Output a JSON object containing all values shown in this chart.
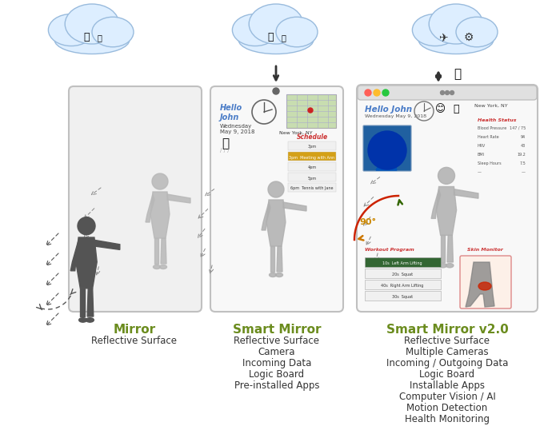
{
  "bg_color": "#ffffff",
  "green_title": "#6b8c1e",
  "mirror_title": "Mirror",
  "mirror_sub": [
    "Reflective Surface"
  ],
  "smart_mirror_title": "Smart Mirror",
  "smart_mirror_sub": [
    "Reflective Surface",
    "Camera",
    "Incoming Data",
    "Logic Board",
    "Pre-installed Apps"
  ],
  "smart_mirror_v2_title": "Smart Mirror v2.0",
  "smart_mirror_v2_sub": [
    "Reflective Surface",
    "Multiple Cameras",
    "Incoming / Outgoing Data",
    "Logic Board",
    "Installable Apps",
    "Computer Vision / AI",
    "Motion Detection",
    "Health Monitoring"
  ],
  "cloud_fill": "#ddeeff",
  "cloud_edge": "#99bbdd",
  "panel_fill": "#f8f8f8",
  "panel_edge": "#bbbbbb",
  "sil_mirror": "#b0b0b0",
  "sil_person": "#555555",
  "blue_text": "#4a7cc7",
  "red_text": "#cc3333",
  "arrow_color": "#333333",
  "dashed_color": "#888888"
}
